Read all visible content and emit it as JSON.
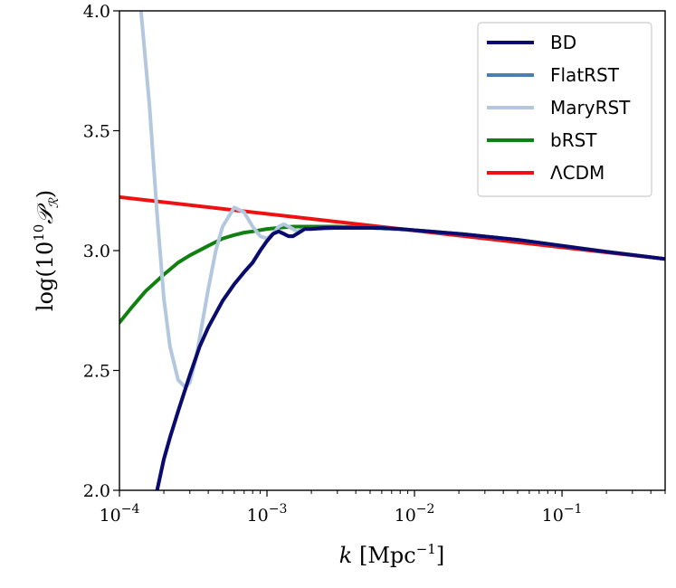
{
  "chart_data": {
    "type": "line",
    "title": "",
    "xlabel": "k [Mpc^-1]",
    "ylabel": "log(10^10 P_R)",
    "xscale": "log",
    "xlim": [
      0.0001,
      0.5
    ],
    "ylim": [
      2.0,
      4.0
    ],
    "xticks": [
      {
        "value": 0.0001,
        "base": "10",
        "exp": "−4"
      },
      {
        "value": 0.001,
        "base": "10",
        "exp": "−3"
      },
      {
        "value": 0.01,
        "base": "10",
        "exp": "−2"
      },
      {
        "value": 0.1,
        "base": "10",
        "exp": "−1"
      }
    ],
    "yticks": [
      {
        "value": 2.0,
        "label": "2.0"
      },
      {
        "value": 2.5,
        "label": "2.5"
      },
      {
        "value": 3.0,
        "label": "3.0"
      },
      {
        "value": 3.5,
        "label": "3.5"
      },
      {
        "value": 4.0,
        "label": "4.0"
      }
    ],
    "legend_position": "top-right",
    "series": [
      {
        "name": "BD",
        "color": "#0b0b6e",
        "x": [
          0.00018,
          0.0002,
          0.00022,
          0.00025,
          0.0003,
          0.00035,
          0.0004,
          0.0005,
          0.0006,
          0.0007,
          0.0008,
          0.0009,
          0.001,
          0.0011,
          0.0012,
          0.0013,
          0.0014,
          0.0015,
          0.0016,
          0.0018,
          0.002,
          0.0025,
          0.003,
          0.004,
          0.005,
          0.006,
          0.008,
          0.01,
          0.02,
          0.05,
          0.1,
          0.2,
          0.5
        ],
        "y": [
          2.0,
          2.13,
          2.22,
          2.33,
          2.48,
          2.6,
          2.68,
          2.79,
          2.86,
          2.91,
          2.95,
          3.0,
          3.04,
          3.07,
          3.08,
          3.07,
          3.06,
          3.06,
          3.07,
          3.09,
          3.09,
          3.095,
          3.095,
          3.095,
          3.095,
          3.094,
          3.09,
          3.085,
          3.07,
          3.045,
          3.02,
          2.995,
          2.965
        ]
      },
      {
        "name": "FlatRST",
        "color": "#4a7fb5",
        "x": [
          0.00018,
          0.0002,
          0.00022,
          0.00025,
          0.0003,
          0.00035,
          0.0004,
          0.0005,
          0.0006,
          0.0007,
          0.0008,
          0.0009,
          0.001,
          0.0011,
          0.0012,
          0.0013,
          0.0014,
          0.0015,
          0.0016,
          0.0018,
          0.002,
          0.0025,
          0.003,
          0.004,
          0.005,
          0.006,
          0.008,
          0.01,
          0.02,
          0.05,
          0.1,
          0.2,
          0.5
        ],
        "y": [
          2.0,
          2.13,
          2.22,
          2.33,
          2.48,
          2.6,
          2.68,
          2.79,
          2.86,
          2.91,
          2.95,
          3.0,
          3.04,
          3.07,
          3.08,
          3.07,
          3.06,
          3.06,
          3.07,
          3.09,
          3.09,
          3.095,
          3.095,
          3.095,
          3.095,
          3.094,
          3.09,
          3.085,
          3.07,
          3.045,
          3.02,
          2.995,
          2.965
        ]
      },
      {
        "name": "MaryRST",
        "color": "#b3c7df",
        "x": [
          0.00014,
          0.00016,
          0.00018,
          0.0002,
          0.00022,
          0.00025,
          0.00028,
          0.0003,
          0.00033,
          0.00036,
          0.0004,
          0.00045,
          0.0005,
          0.0006,
          0.0007,
          0.0008,
          0.0009,
          0.001,
          0.0011,
          0.0012,
          0.0013,
          0.0014,
          0.0015,
          0.0016,
          0.0018,
          0.002,
          0.0025,
          0.003,
          0.004,
          0.005,
          0.01,
          0.02,
          0.05,
          0.1,
          0.5
        ],
        "y": [
          4.0,
          3.6,
          3.15,
          2.8,
          2.6,
          2.46,
          2.43,
          2.45,
          2.55,
          2.68,
          2.84,
          3.0,
          3.1,
          3.18,
          3.16,
          3.1,
          3.06,
          3.05,
          3.07,
          3.1,
          3.11,
          3.1,
          3.09,
          3.08,
          3.09,
          3.09,
          3.09,
          3.095,
          3.095,
          3.095,
          3.085,
          3.07,
          3.045,
          3.02,
          2.965
        ]
      },
      {
        "name": "bRST",
        "color": "#108010",
        "x": [
          0.0001,
          0.00012,
          0.00015,
          0.0002,
          0.00025,
          0.0003,
          0.0004,
          0.0005,
          0.0006,
          0.0007,
          0.0008,
          0.001,
          0.0012,
          0.0015,
          0.002,
          0.003,
          0.005,
          0.01,
          0.02,
          0.05,
          0.1,
          0.2,
          0.5
        ],
        "y": [
          2.7,
          2.76,
          2.83,
          2.9,
          2.95,
          2.98,
          3.02,
          3.05,
          3.065,
          3.075,
          3.08,
          3.09,
          3.095,
          3.1,
          3.1,
          3.1,
          3.095,
          3.085,
          3.07,
          3.045,
          3.02,
          2.995,
          2.965
        ]
      },
      {
        "name": "ΛCDM",
        "color": "#ee1111",
        "x": [
          0.0001,
          0.5
        ],
        "y": [
          3.223,
          2.965
        ]
      }
    ]
  }
}
